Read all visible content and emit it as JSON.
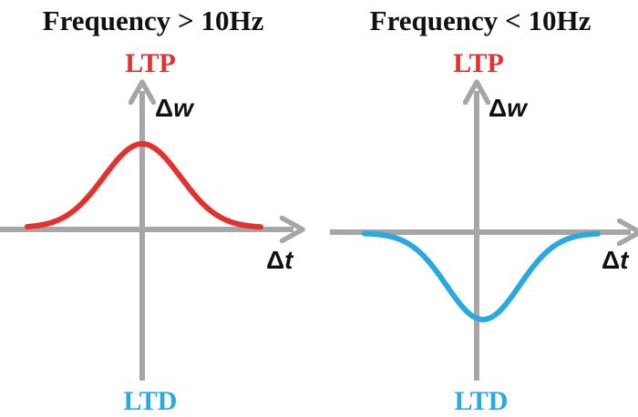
{
  "colors": {
    "axis": "#a6a6a6",
    "text": "#111111",
    "ltp": "#e3312d",
    "ltd": "#2aa8e0",
    "curve_up": "#e3312d",
    "curve_down": "#2aa8e0"
  },
  "panels": [
    {
      "title": "Frequency > 10Hz",
      "top_label": "LTP",
      "bottom_label": "LTD",
      "y_axis_label": {
        "delta": "Δ",
        "var": "w"
      },
      "x_axis_label": {
        "delta": "Δ",
        "var": "t"
      },
      "curve": {
        "shape": "positive-peak",
        "color": "curve_up"
      }
    },
    {
      "title": "Frequency < 10Hz",
      "top_label": "LTP",
      "bottom_label": "LTD",
      "y_axis_label": {
        "delta": "Δ",
        "var": "w"
      },
      "x_axis_label": {
        "delta": "Δ",
        "var": "t"
      },
      "curve": {
        "shape": "negative-trough",
        "color": "curve_down"
      }
    }
  ]
}
